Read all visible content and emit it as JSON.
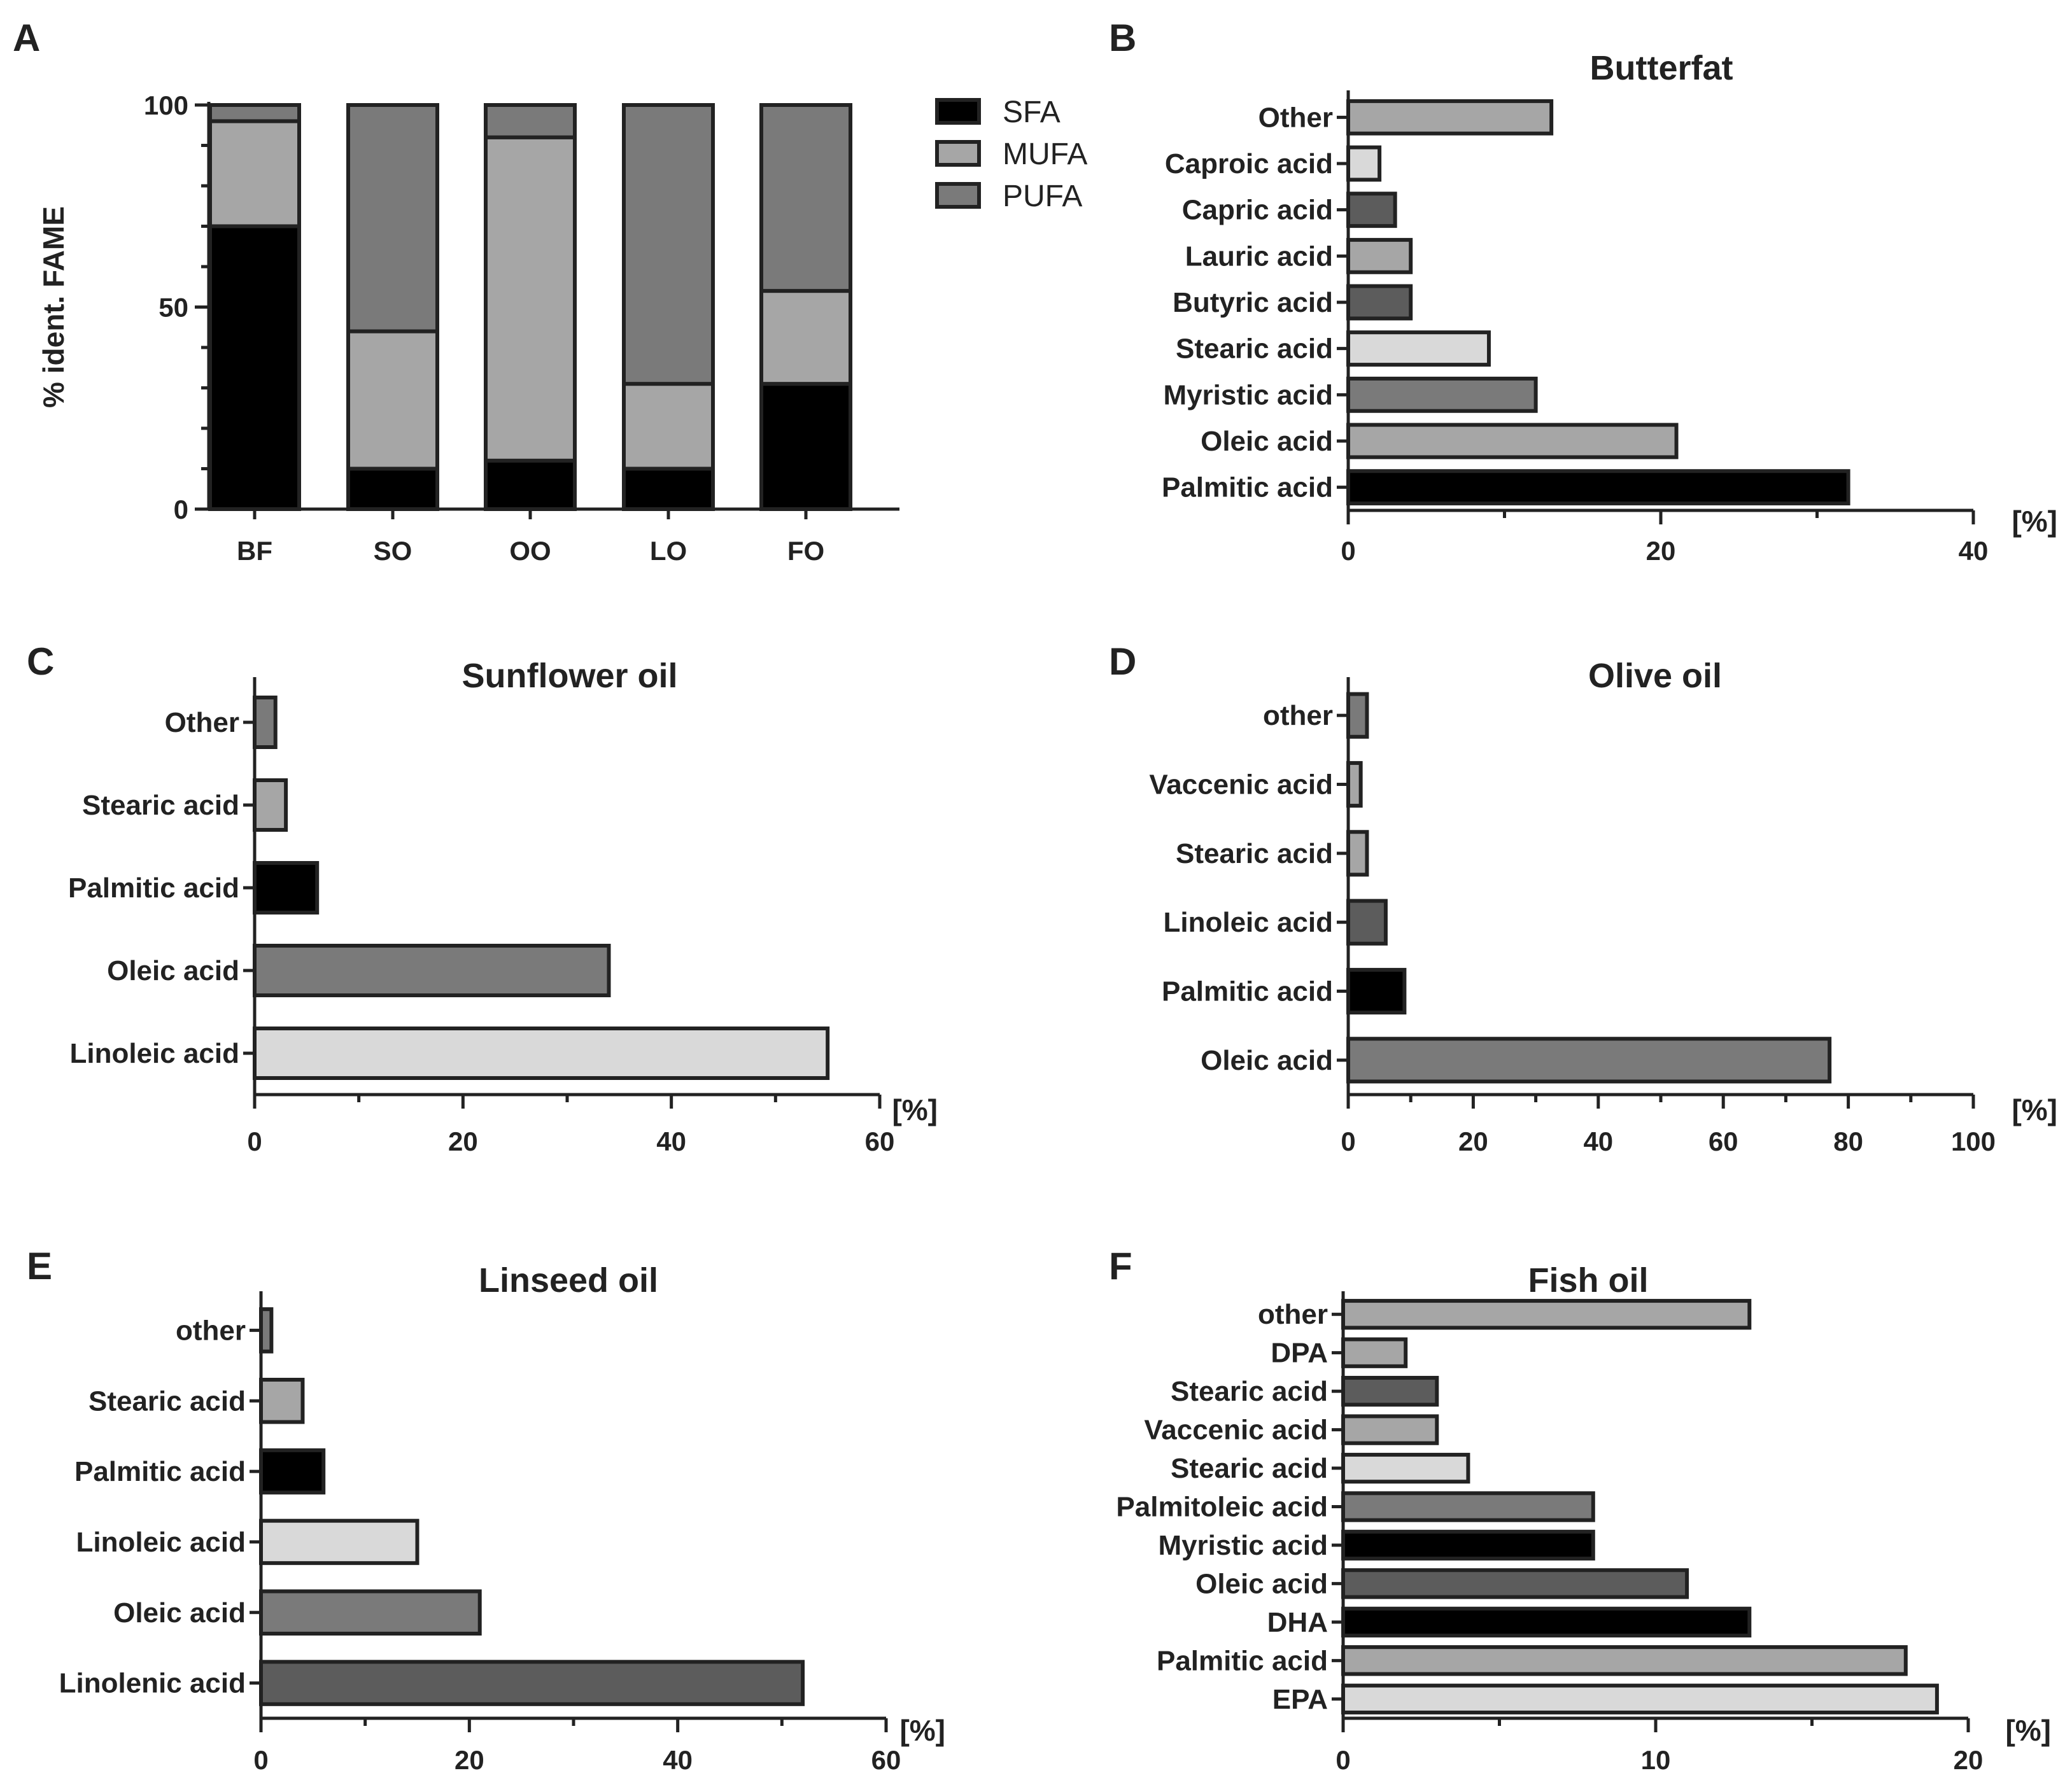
{
  "chart_data": [
    {
      "panel": "A",
      "type": "bar",
      "stacked": true,
      "title": "",
      "ylabel": "% ident. FAME",
      "xlabel": "",
      "ylim": [
        0,
        100
      ],
      "yticks": [
        0,
        50,
        100
      ],
      "categories": [
        "BF",
        "SO",
        "OO",
        "LO",
        "FO"
      ],
      "series": [
        {
          "name": "SFA",
          "color": "#000000",
          "values": [
            70,
            10,
            12,
            10,
            31
          ]
        },
        {
          "name": "MUFA",
          "color": "#a6a6a6",
          "values": [
            26,
            34,
            80,
            21,
            23
          ]
        },
        {
          "name": "PUFA",
          "color": "#7a7a7a",
          "values": [
            4,
            56,
            8,
            69,
            46
          ]
        }
      ],
      "legend": "right"
    },
    {
      "panel": "B",
      "type": "bar",
      "orientation": "horizontal",
      "title": "Butterfat",
      "unit": "[%]",
      "xlim": [
        0,
        40
      ],
      "xticks": [
        0,
        20,
        40
      ],
      "categories": [
        "Other",
        "Caproic acid",
        "Capric acid",
        "Lauric acid",
        "Butyric acid",
        "Stearic acid",
        "Myristic acid",
        "Oleic acid",
        "Palmitic acid"
      ],
      "values": [
        13,
        2,
        3,
        4,
        4,
        9,
        12,
        21,
        32
      ],
      "colors": [
        "#a6a6a6",
        "#d9d9d9",
        "#5c5c5c",
        "#a6a6a6",
        "#5c5c5c",
        "#d9d9d9",
        "#7a7a7a",
        "#a6a6a6",
        "#000000"
      ]
    },
    {
      "panel": "C",
      "type": "bar",
      "orientation": "horizontal",
      "title": "Sunflower oil",
      "unit": "[%]",
      "xlim": [
        0,
        60
      ],
      "xticks": [
        0,
        20,
        40,
        60
      ],
      "categories": [
        "Other",
        "Stearic acid",
        "Palmitic acid",
        "Oleic acid",
        "Linoleic acid"
      ],
      "values": [
        2,
        3,
        6,
        34,
        55
      ],
      "colors": [
        "#7a7a7a",
        "#a6a6a6",
        "#000000",
        "#7a7a7a",
        "#d9d9d9"
      ]
    },
    {
      "panel": "D",
      "type": "bar",
      "orientation": "horizontal",
      "title": "Olive oil",
      "unit": "[%]",
      "xlim": [
        0,
        100
      ],
      "xticks": [
        0,
        20,
        40,
        60,
        80,
        100
      ],
      "categories": [
        "other",
        "Vaccenic acid",
        "Stearic acid",
        "Linoleic acid",
        "Palmitic acid",
        "Oleic acid"
      ],
      "values": [
        3,
        2,
        3,
        6,
        9,
        77
      ],
      "colors": [
        "#7a7a7a",
        "#a6a6a6",
        "#a6a6a6",
        "#5c5c5c",
        "#000000",
        "#7a7a7a"
      ]
    },
    {
      "panel": "E",
      "type": "bar",
      "orientation": "horizontal",
      "title": "Linseed oil",
      "unit": "[%]",
      "xlim": [
        0,
        60
      ],
      "xticks": [
        0,
        20,
        40,
        60
      ],
      "categories": [
        "other",
        "Stearic acid",
        "Palmitic acid",
        "Linoleic acid",
        "Oleic acid",
        "Linolenic acid"
      ],
      "values": [
        1,
        4,
        6,
        15,
        21,
        52
      ],
      "colors": [
        "#7a7a7a",
        "#a6a6a6",
        "#000000",
        "#d9d9d9",
        "#7a7a7a",
        "#5c5c5c"
      ]
    },
    {
      "panel": "F",
      "type": "bar",
      "orientation": "horizontal",
      "title": "Fish oil",
      "unit": "[%]",
      "xlim": [
        0,
        20
      ],
      "xticks": [
        0,
        10,
        20
      ],
      "categories": [
        "other",
        "DPA",
        "Stearic acid",
        "Vaccenic acid",
        "Stearic acid",
        "Palmitoleic acid",
        "Myristic acid",
        "Oleic acid",
        "DHA",
        "Palmitic acid",
        "EPA"
      ],
      "values": [
        13,
        2,
        3,
        3,
        4,
        8,
        8,
        11,
        13,
        18,
        19
      ],
      "colors": [
        "#a6a6a6",
        "#a6a6a6",
        "#5c5c5c",
        "#a6a6a6",
        "#d9d9d9",
        "#7a7a7a",
        "#000000",
        "#5c5c5c",
        "#000000",
        "#a6a6a6",
        "#d9d9d9"
      ]
    }
  ]
}
